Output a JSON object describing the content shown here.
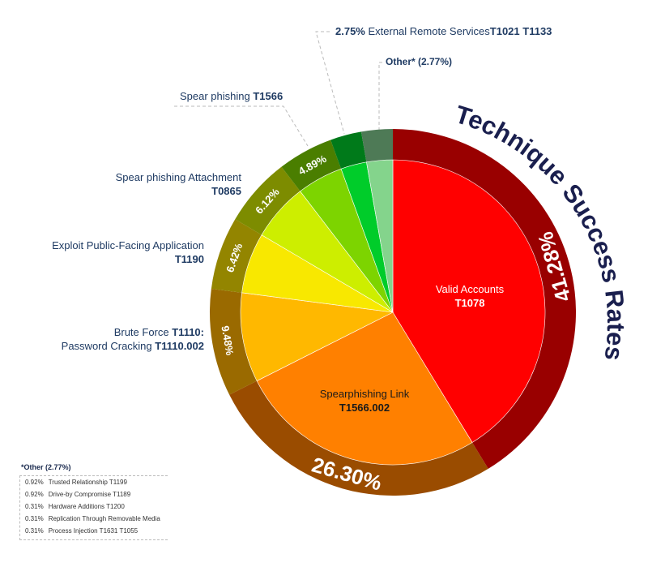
{
  "chart_data": {
    "type": "pie",
    "title": "Technique Success Rates",
    "slices": [
      {
        "name": "Valid Accounts",
        "code": "T1078",
        "value": 41.28,
        "label": "41.28%",
        "color": "#ff0000",
        "ring": "#990000"
      },
      {
        "name": "Spearphishing Link",
        "code": "T1566.002",
        "value": 26.3,
        "label": "26.30%",
        "color": "#ff8000",
        "ring": "#9a4c00"
      },
      {
        "name": "Brute Force",
        "code": "T1110",
        "value": 9.48,
        "label": "9.48%",
        "color": "#ffb800",
        "ring": "#9a6a00"
      },
      {
        "name": "Exploit Public-Facing Application",
        "code": "T1190",
        "value": 6.42,
        "label": "6.42%",
        "color": "#f8e800",
        "ring": "#938500"
      },
      {
        "name": "Spear phishing Attachment",
        "code": "T0865",
        "value": 6.12,
        "label": "6.12%",
        "color": "#cdee00",
        "ring": "#7d8c00"
      },
      {
        "name": "Spear phishing",
        "code": "T1566",
        "value": 4.89,
        "label": "4.89%",
        "color": "#7dd400",
        "ring": "#4a7e00"
      },
      {
        "name": "External Remote Services",
        "code": "T1021 T1133",
        "value": 2.75,
        "label": "2.75%",
        "color": "#00cc2a",
        "ring": "#007a1a"
      },
      {
        "name": "Other*",
        "code": "",
        "value": 2.77,
        "label": "2.77%",
        "color": "#84d48c",
        "ring": "#4e7a56"
      }
    ]
  },
  "labels": {
    "valid": {
      "name": "Valid Accounts",
      "code": "T1078"
    },
    "link": {
      "name": "Spearphishing Link",
      "code": "T1566.002"
    },
    "brute": {
      "name": "Brute Force ",
      "code": "T1110:",
      "name2": "Password Cracking ",
      "code2": "T1110.002"
    },
    "exploit": {
      "name": "Exploit Public-Facing Application",
      "code": "T1190"
    },
    "attach": {
      "name": "Spear phishing Attachment",
      "code": "T0865"
    },
    "spear": {
      "name": "Spear phishing ",
      "code": "T1566"
    },
    "external": {
      "pct": "2.75%",
      "name": " External Remote Services",
      "code": "T1021 T1133"
    },
    "other": {
      "text": "Other* (2.77%)"
    }
  },
  "other_breakdown": {
    "title": "*Other (2.77%)",
    "rows": [
      {
        "pct": "0.92%",
        "name": "Trusted Relationship T1199"
      },
      {
        "pct": "0.92%",
        "name": "Drive-by Compromise T1189"
      },
      {
        "pct": "0.31%",
        "name": "Hardware Additions T1200"
      },
      {
        "pct": "0.31%",
        "name": "Replication Through Removable Media"
      },
      {
        "pct": "0.31%",
        "name": "Process Injection T1631 T1055"
      }
    ]
  }
}
